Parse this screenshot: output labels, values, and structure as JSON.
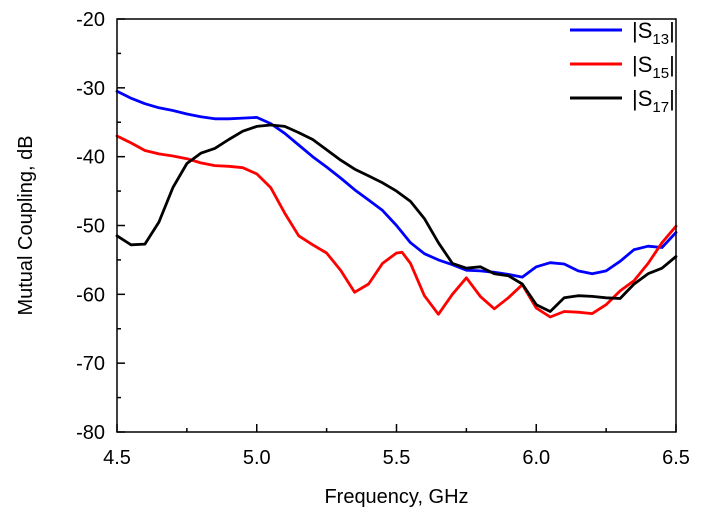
{
  "chart_data": {
    "type": "line",
    "xlabel": "Frequency, GHz",
    "ylabel": "Mutual Coupling, dB",
    "xlim": [
      4.5,
      6.5
    ],
    "ylim": [
      -80,
      -20
    ],
    "xticks": [
      4.5,
      5.0,
      5.5,
      6.0,
      6.5
    ],
    "xtick_labels": [
      "4.5",
      "5.0",
      "5.5",
      "6.0",
      "6.5"
    ],
    "yticks": [
      -20,
      -30,
      -40,
      -50,
      -60,
      -70,
      -80
    ],
    "ytick_labels": [
      "-20",
      "-30",
      "-40",
      "-50",
      "-60",
      "-70",
      "-80"
    ],
    "grid": false,
    "legend_position": "top-right",
    "series": [
      {
        "name_parts": {
          "open": "|S",
          "sub": "13",
          "close": "|"
        },
        "color": "#0000ff",
        "x": [
          4.5,
          4.55,
          4.6,
          4.65,
          4.7,
          4.75,
          4.8,
          4.85,
          4.9,
          4.95,
          5.0,
          5.05,
          5.1,
          5.15,
          5.2,
          5.25,
          5.3,
          5.35,
          5.4,
          5.45,
          5.5,
          5.55,
          5.6,
          5.65,
          5.7,
          5.75,
          5.8,
          5.85,
          5.9,
          5.95,
          6.0,
          6.05,
          6.1,
          6.15,
          6.2,
          6.25,
          6.3,
          6.35,
          6.4,
          6.45,
          6.5
        ],
        "y": [
          -30.5,
          -31.5,
          -32.3,
          -32.9,
          -33.3,
          -33.8,
          -34.2,
          -34.5,
          -34.5,
          -34.4,
          -34.3,
          -35.2,
          -36.6,
          -38.3,
          -40.0,
          -41.5,
          -43.1,
          -44.8,
          -46.3,
          -47.8,
          -50.0,
          -52.5,
          -54.1,
          -55.0,
          -55.7,
          -56.5,
          -56.6,
          -56.8,
          -57.1,
          -57.5,
          -56.0,
          -55.4,
          -55.6,
          -56.6,
          -57.0,
          -56.6,
          -55.2,
          -53.5,
          -53.0,
          -53.2,
          -51.0
        ]
      },
      {
        "name_parts": {
          "open": "|S",
          "sub": "15",
          "close": "|"
        },
        "color": "#ff0000",
        "x": [
          4.5,
          4.55,
          4.6,
          4.65,
          4.7,
          4.75,
          4.8,
          4.85,
          4.9,
          4.95,
          5.0,
          5.05,
          5.1,
          5.15,
          5.2,
          5.25,
          5.3,
          5.35,
          5.4,
          5.45,
          5.5,
          5.52,
          5.55,
          5.6,
          5.65,
          5.7,
          5.75,
          5.8,
          5.85,
          5.9,
          5.95,
          6.0,
          6.05,
          6.1,
          6.15,
          6.2,
          6.25,
          6.3,
          6.35,
          6.4,
          6.45,
          6.5
        ],
        "y": [
          -37.0,
          -38.0,
          -39.1,
          -39.6,
          -39.9,
          -40.3,
          -40.9,
          -41.3,
          -41.4,
          -41.6,
          -42.5,
          -44.5,
          -48.2,
          -51.5,
          -52.8,
          -54.0,
          -56.5,
          -59.7,
          -58.5,
          -55.5,
          -54.0,
          -53.9,
          -55.5,
          -60.2,
          -62.9,
          -60.0,
          -57.6,
          -60.3,
          -62.1,
          -60.5,
          -58.6,
          -62.0,
          -63.3,
          -62.5,
          -62.6,
          -62.8,
          -61.5,
          -59.5,
          -58.0,
          -55.5,
          -52.5,
          -50.1
        ]
      },
      {
        "name_parts": {
          "open": "|S",
          "sub": "17",
          "close": "|"
        },
        "color": "#000000",
        "x": [
          4.5,
          4.55,
          4.6,
          4.65,
          4.7,
          4.75,
          4.8,
          4.85,
          4.9,
          4.95,
          5.0,
          5.05,
          5.1,
          5.15,
          5.2,
          5.25,
          5.3,
          5.35,
          5.4,
          5.45,
          5.5,
          5.55,
          5.6,
          5.65,
          5.7,
          5.75,
          5.8,
          5.85,
          5.9,
          5.95,
          6.0,
          6.05,
          6.1,
          6.15,
          6.2,
          6.25,
          6.3,
          6.35,
          6.4,
          6.45,
          6.5
        ],
        "y": [
          -51.5,
          -52.8,
          -52.7,
          -49.5,
          -44.5,
          -41.0,
          -39.5,
          -38.8,
          -37.5,
          -36.3,
          -35.6,
          -35.4,
          -35.6,
          -36.5,
          -37.5,
          -39.0,
          -40.5,
          -41.8,
          -42.8,
          -43.8,
          -45.0,
          -46.5,
          -49.0,
          -52.5,
          -55.5,
          -56.2,
          -56.0,
          -57.0,
          -57.3,
          -58.5,
          -61.5,
          -62.5,
          -60.5,
          -60.2,
          -60.3,
          -60.5,
          -60.6,
          -58.5,
          -57.0,
          -56.2,
          -54.5
        ]
      }
    ]
  }
}
